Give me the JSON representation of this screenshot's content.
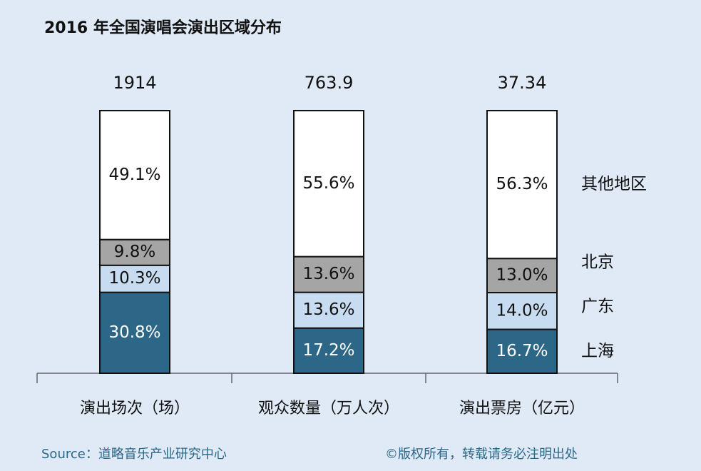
{
  "chart_data": {
    "type": "stacked_bar_100",
    "title": "2016 年全国演唱会演出区域分布",
    "categories": [
      "演出场次（场）",
      "观众数量（万人次）",
      "演出票房（亿元）"
    ],
    "totals": [
      1914,
      763.9,
      37.34
    ],
    "series": [
      {
        "name": "上海",
        "color": "#2c6787",
        "label_color": "#ffffff",
        "values": [
          30.8,
          17.2,
          16.7
        ],
        "value_labels": [
          "30.8%",
          "17.2%",
          "16.7%"
        ]
      },
      {
        "name": "广东",
        "color": "#c7dcf0",
        "label_color": "#111111",
        "values": [
          10.3,
          13.6,
          14.0
        ],
        "value_labels": [
          "10.3%",
          "13.6%",
          "14.0%"
        ]
      },
      {
        "name": "北京",
        "color": "#a5a5a5",
        "label_color": "#111111",
        "values": [
          9.8,
          13.6,
          13.0
        ],
        "value_labels": [
          "9.8%",
          "13.6%",
          "13.0%"
        ]
      },
      {
        "name": "其他地区",
        "color": "#ffffff",
        "label_color": "#111111",
        "values": [
          49.1,
          55.6,
          56.3
        ],
        "value_labels": [
          "49.1%",
          "55.6%",
          "56.3%"
        ]
      }
    ],
    "source": "Source：道略音乐产业研究中心",
    "copyright": "©版权所有，转载请务必注明出处"
  }
}
